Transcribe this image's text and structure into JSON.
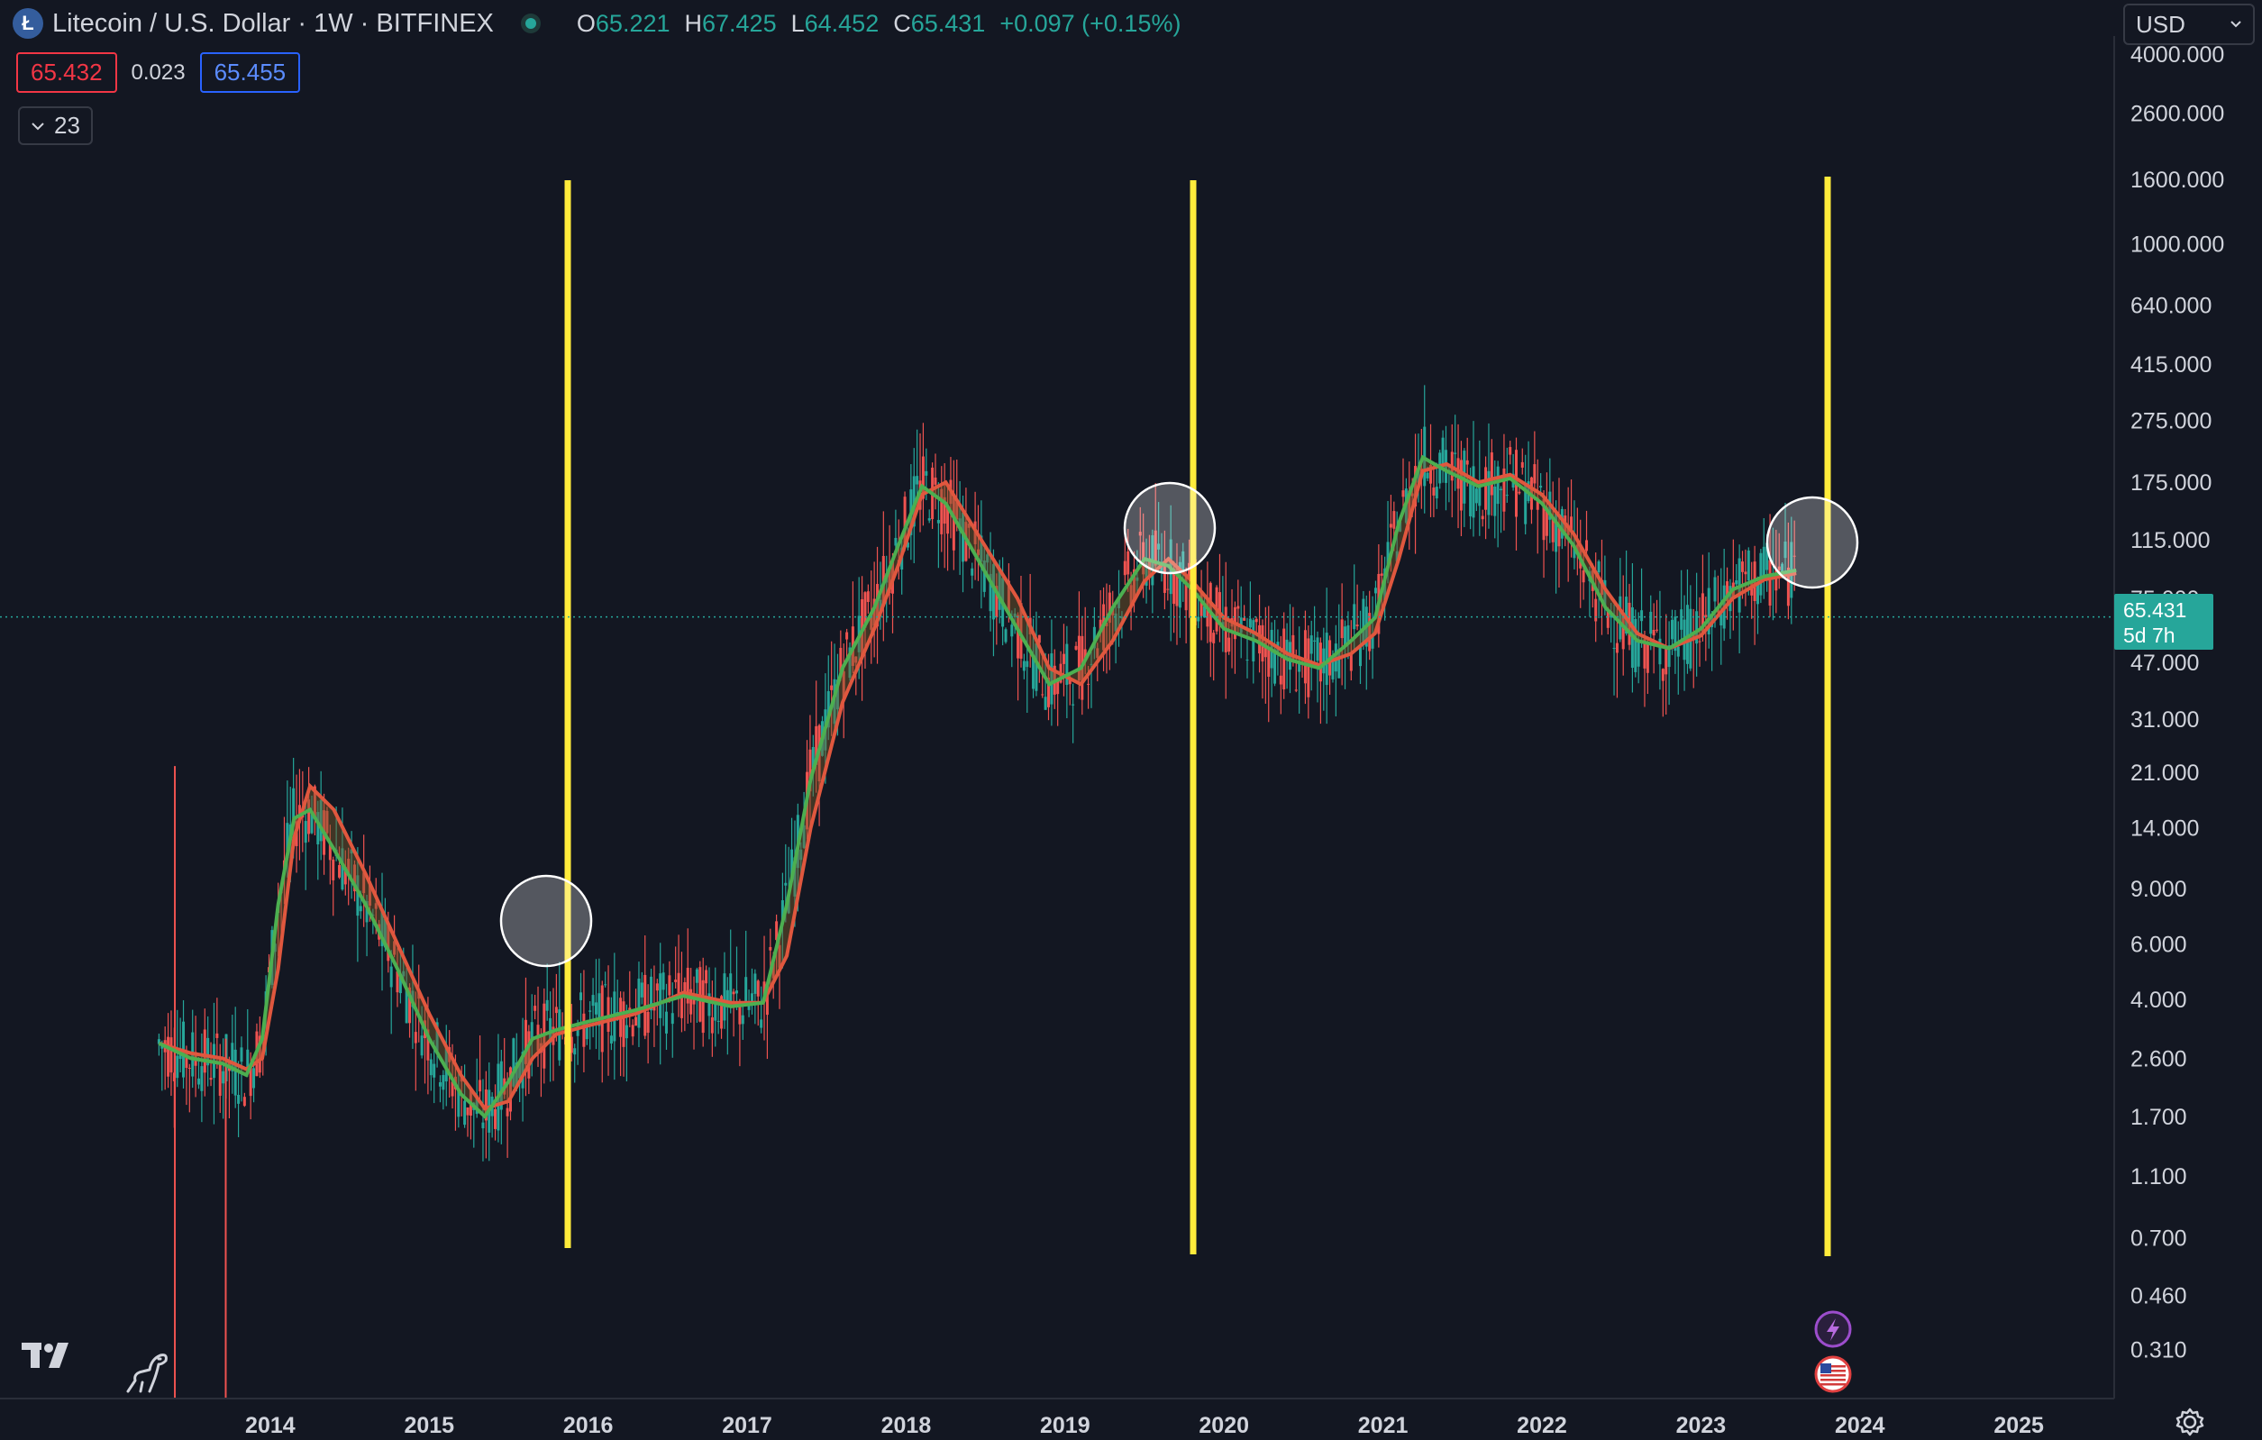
{
  "header": {
    "symbol_icon": "litecoin-logo-icon",
    "title": "Litecoin / U.S. Dollar · 1W · BITFINEX",
    "market_status_icon": "market-open-dot-icon",
    "ohlc": [
      {
        "label": "O",
        "value": "65.221"
      },
      {
        "label": "H",
        "value": "67.425"
      },
      {
        "label": "L",
        "value": "64.452"
      },
      {
        "label": "C",
        "value": "65.431"
      }
    ],
    "change": "+0.097 (+0.15%)",
    "sell_price": "65.432",
    "spread": "0.023",
    "buy_price": "65.455",
    "indicators_count": "23",
    "currency": "USD"
  },
  "price_label": {
    "price": "65.431",
    "countdown": "5d 7h"
  },
  "colors": {
    "background": "#131722",
    "up": "#26a69a",
    "down": "#ef5350",
    "fast_ma": "#4caf50",
    "slow_ma": "#e0573e",
    "vertical_lines": "#ffeb3b",
    "circles": "#ffffff"
  },
  "chart_data": {
    "type": "line",
    "scale": "log",
    "ylim": [
      0.25,
      4000
    ],
    "y_ticks": [
      "4000.000",
      "2600.000",
      "1600.000",
      "1000.000",
      "640.000",
      "415.000",
      "275.000",
      "175.000",
      "115.000",
      "75.000",
      "47.000",
      "31.000",
      "21.000",
      "14.000",
      "9.000",
      "6.000",
      "4.000",
      "2.600",
      "1.700",
      "1.100",
      "0.700",
      "0.460",
      "0.310"
    ],
    "x_ticks": [
      "2014",
      "2015",
      "2016",
      "2017",
      "2018",
      "2019",
      "2020",
      "2021",
      "2022",
      "2023",
      "2024",
      "2025"
    ],
    "xlim": [
      2012.3,
      2025.6
    ],
    "last_price": 65.431,
    "series": [
      {
        "x": [
          2013.3,
          2013.5,
          2013.7,
          2013.85,
          2013.95,
          2014.05,
          2014.15,
          2014.25,
          2014.4,
          2014.6,
          2014.8,
          2015.0,
          2015.2,
          2015.35,
          2015.5,
          2015.65,
          2015.8,
          2016.0,
          2016.3,
          2016.6,
          2016.9,
          2017.1,
          2017.25,
          2017.4,
          2017.6,
          2017.8,
          2017.95,
          2018.1,
          2018.25,
          2018.45,
          2018.7,
          2018.9,
          2019.1,
          2019.3,
          2019.5,
          2019.65,
          2019.8,
          2020.0,
          2020.2,
          2020.4,
          2020.6,
          2020.8,
          2020.95,
          2021.1,
          2021.25,
          2021.4,
          2021.6,
          2021.8,
          2022.0,
          2022.2,
          2022.4,
          2022.6,
          2022.8,
          2023.0,
          2023.2,
          2023.4,
          2023.6
        ],
        "values": [
          2.9,
          2.6,
          2.5,
          2.3,
          3,
          8,
          15,
          16,
          12,
          8,
          5,
          3,
          2,
          1.7,
          2.2,
          3,
          3.2,
          3.4,
          3.7,
          4.1,
          3.8,
          3.9,
          8,
          20,
          45,
          70,
          110,
          170,
          150,
          100,
          60,
          40,
          45,
          70,
          100,
          95,
          80,
          60,
          55,
          48,
          45,
          55,
          65,
          130,
          210,
          190,
          170,
          180,
          150,
          110,
          70,
          55,
          52,
          60,
          80,
          88,
          92
        ]
      },
      {
        "x": [
          2013.3,
          2013.5,
          2013.7,
          2013.85,
          2013.95,
          2014.05,
          2014.15,
          2014.25,
          2014.4,
          2014.6,
          2014.8,
          2015.0,
          2015.2,
          2015.35,
          2015.5,
          2015.65,
          2015.8,
          2016.0,
          2016.3,
          2016.6,
          2016.9,
          2017.1,
          2017.25,
          2017.4,
          2017.6,
          2017.8,
          2017.95,
          2018.1,
          2018.25,
          2018.45,
          2018.7,
          2018.9,
          2019.1,
          2019.3,
          2019.5,
          2019.65,
          2019.8,
          2020.0,
          2020.2,
          2020.4,
          2020.6,
          2020.8,
          2020.95,
          2021.1,
          2021.25,
          2021.4,
          2021.6,
          2021.8,
          2022.0,
          2022.2,
          2022.4,
          2022.6,
          2022.8,
          2023.0,
          2023.2,
          2023.4,
          2023.6
        ],
        "values": [
          2.9,
          2.7,
          2.6,
          2.4,
          2.6,
          5,
          13,
          19,
          16,
          10,
          6,
          3.6,
          2.3,
          1.8,
          1.9,
          2.6,
          3.1,
          3.3,
          3.6,
          4.2,
          3.9,
          3.9,
          5.5,
          14,
          35,
          60,
          95,
          160,
          175,
          120,
          75,
          45,
          40,
          55,
          85,
          100,
          85,
          65,
          58,
          50,
          46,
          50,
          58,
          100,
          190,
          200,
          175,
          185,
          160,
          120,
          80,
          58,
          52,
          57,
          75,
          86,
          90
        ]
      }
    ]
  }
}
